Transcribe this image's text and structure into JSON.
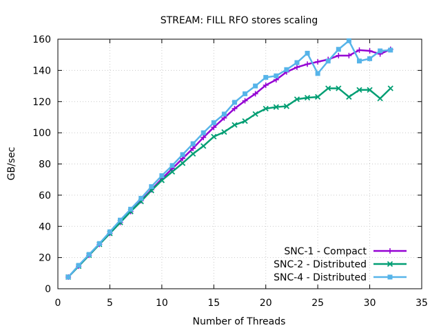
{
  "chart_data": {
    "type": "line",
    "title": "STREAM: FILL RFO stores scaling",
    "xlabel": "Number of Threads",
    "ylabel": "GB/sec",
    "xlim": [
      0,
      35
    ],
    "ylim": [
      0,
      160
    ],
    "xticks": [
      0,
      5,
      10,
      15,
      20,
      25,
      30,
      35
    ],
    "yticks": [
      0,
      20,
      40,
      60,
      80,
      100,
      120,
      140,
      160
    ],
    "grid": true,
    "legend_position": "bottom-right",
    "x": [
      1,
      2,
      3,
      4,
      5,
      6,
      7,
      8,
      9,
      10,
      11,
      12,
      13,
      14,
      15,
      16,
      17,
      18,
      19,
      20,
      21,
      22,
      23,
      24,
      25,
      26,
      27,
      28,
      29,
      30,
      31,
      32
    ],
    "series": [
      {
        "name": "SNC-1 - Compact",
        "color": "#9400d3",
        "marker": "plus",
        "values": [
          7.5,
          14.5,
          21.5,
          28.5,
          35.5,
          42.5,
          49.5,
          56.5,
          63.5,
          70.5,
          77.0,
          83.5,
          90.0,
          97.0,
          103.5,
          109.5,
          115.5,
          120.5,
          125.0,
          130.5,
          134.0,
          139.0,
          142.0,
          144.0,
          145.5,
          147.0,
          149.5,
          149.5,
          153.0,
          152.5,
          150.5,
          153.5
        ]
      },
      {
        "name": "SNC-2 - Distributed",
        "color": "#009e73",
        "marker": "cross",
        "values": [
          7.5,
          14.5,
          21.5,
          28.5,
          35.5,
          42.5,
          49.5,
          56.0,
          63.0,
          69.5,
          75.0,
          80.5,
          86.5,
          91.5,
          97.5,
          100.5,
          105.0,
          107.5,
          112.0,
          115.5,
          116.5,
          117.0,
          121.5,
          122.5,
          123.0,
          128.5,
          128.5,
          123.0,
          127.5,
          127.5,
          122.0,
          128.5
        ]
      },
      {
        "name": "SNC-4 - Distributed",
        "color": "#56b4e9",
        "marker": "square",
        "values": [
          7.5,
          15.0,
          22.0,
          29.0,
          36.5,
          44.0,
          51.0,
          58.0,
          65.5,
          72.5,
          79.0,
          86.0,
          93.0,
          100.0,
          106.5,
          112.0,
          119.5,
          125.0,
          130.0,
          135.5,
          136.5,
          140.5,
          145.0,
          151.0,
          138.0,
          146.0,
          153.5,
          159.0,
          146.0,
          147.5,
          152.5,
          153.0
        ]
      }
    ]
  }
}
